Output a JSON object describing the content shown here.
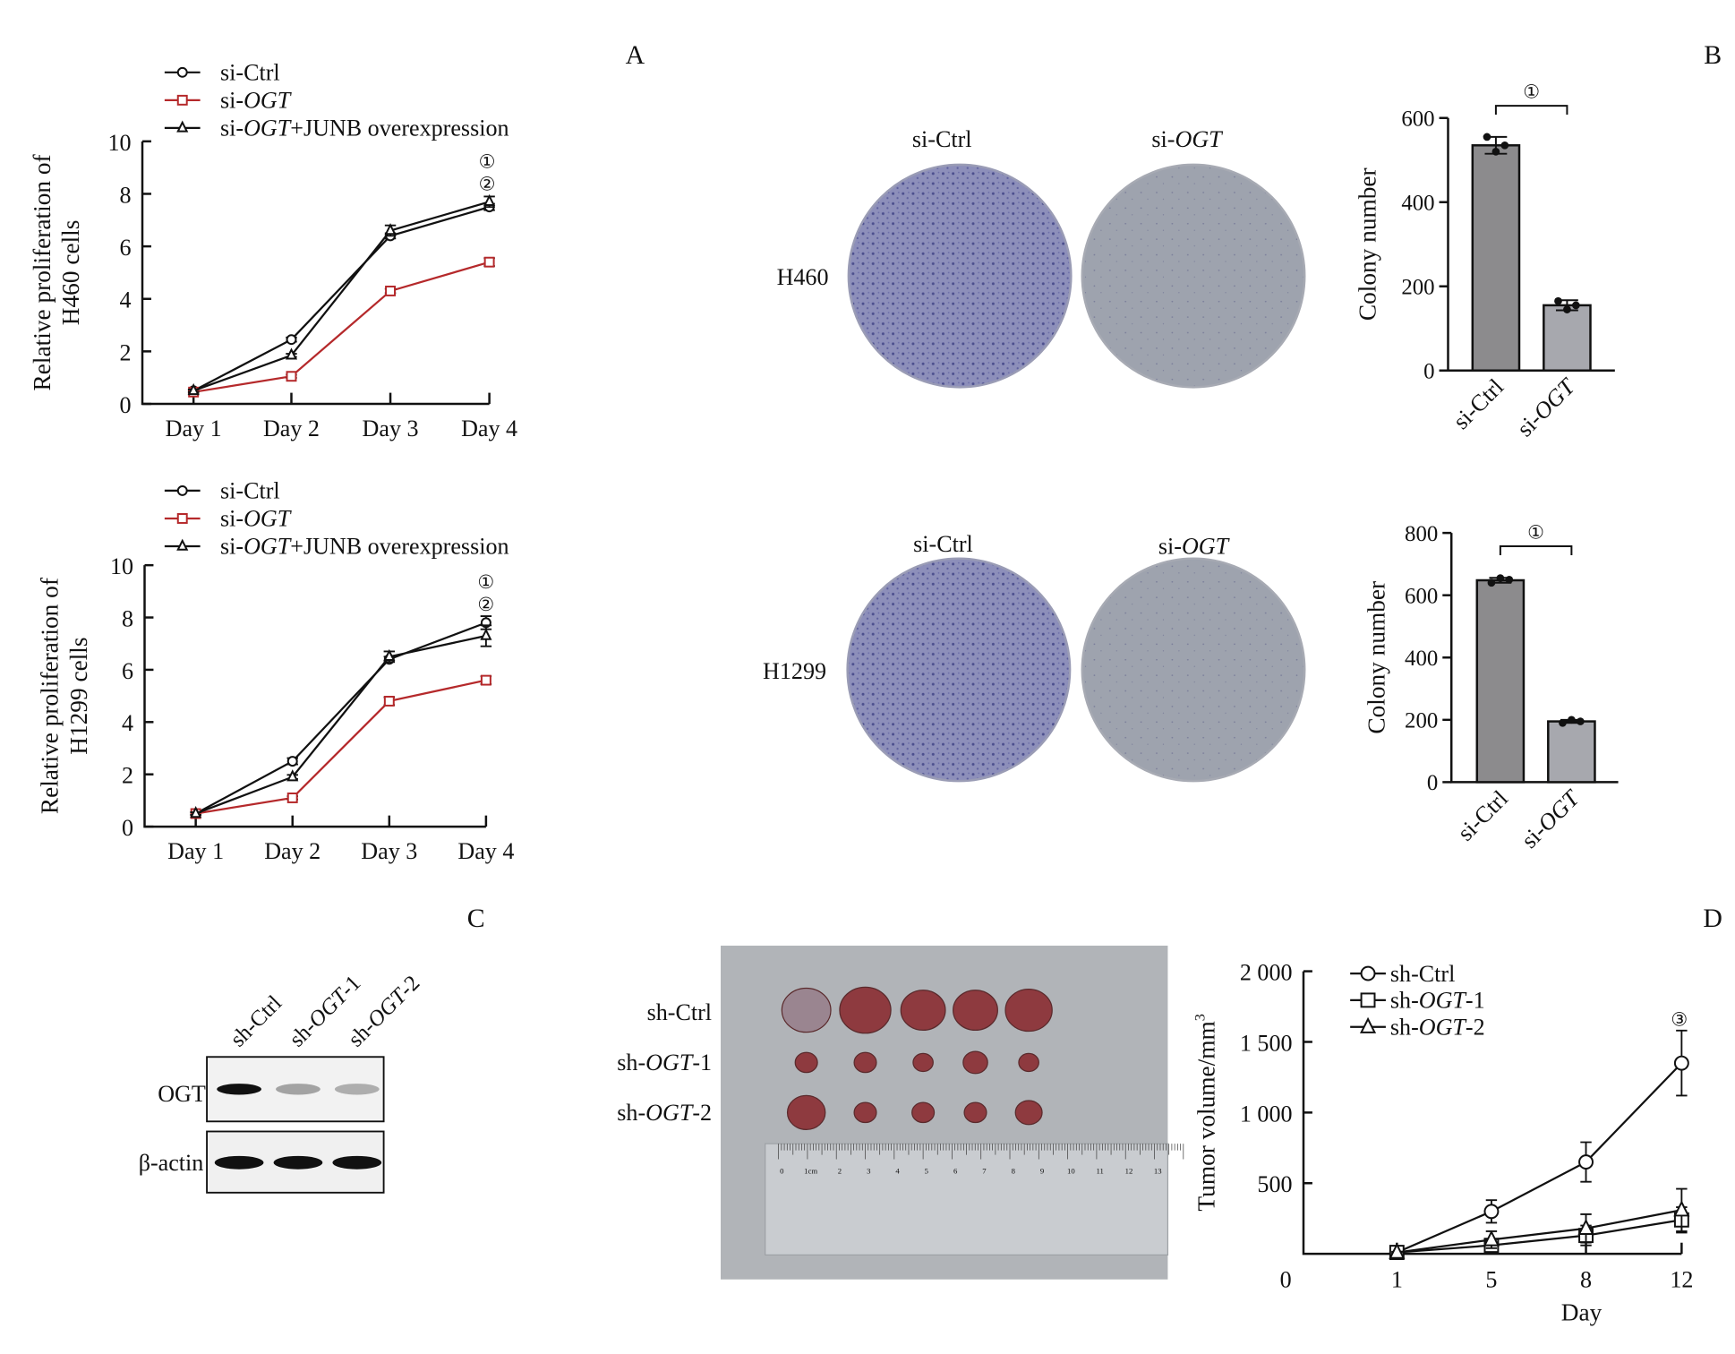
{
  "panels": {
    "a": "A",
    "b": "B",
    "c": "C",
    "d": "D"
  },
  "colors": {
    "black": "#111111",
    "red": "#b5292b",
    "bar_ctrl": "#8c8b8d",
    "bar_ogt": "#a7a8ae",
    "plate_ctrl": "#8d8fba",
    "plate_ogt": "#9ea3ae",
    "photo_bg": "#b1b4b8"
  },
  "chart_data": [
    {
      "id": "a1",
      "type": "line",
      "ylabel_line1": "Relative proliferation of",
      "ylabel_line2": "H460 cells",
      "categories": [
        "Day 1",
        "Day 2",
        "Day 3",
        "Day 4"
      ],
      "ylim": [
        0,
        10
      ],
      "yticks": [
        "0",
        "2",
        "4",
        "6",
        "8",
        "10"
      ],
      "series": [
        {
          "name_pre": "si-",
          "name_it": "",
          "name_post": "Ctrl",
          "marker": "circle",
          "color": "#111111",
          "values": [
            0.5,
            2.45,
            6.4,
            7.5
          ],
          "err": [
            0.05,
            0.08,
            0.1,
            0.12
          ]
        },
        {
          "name_pre": "si-",
          "name_it": "OGT",
          "name_post": "",
          "marker": "square",
          "color": "#b5292b",
          "values": [
            0.45,
            1.05,
            4.3,
            5.4
          ],
          "err": [
            0.05,
            0.06,
            0.08,
            0.15
          ]
        },
        {
          "name_pre": "si-",
          "name_it": "OGT",
          "name_post": "+JUNB overexpression",
          "marker": "triangle",
          "color": "#111111",
          "values": [
            0.5,
            1.85,
            6.6,
            7.7
          ],
          "err": [
            0.05,
            0.06,
            0.2,
            0.2
          ]
        }
      ],
      "annotations": [
        "①",
        "②"
      ]
    },
    {
      "id": "a2",
      "type": "line",
      "ylabel_line1": "Relative proliferation of",
      "ylabel_line2": "H1299 cells",
      "categories": [
        "Day 1",
        "Day 2",
        "Day 3",
        "Day 4"
      ],
      "ylim": [
        0,
        10
      ],
      "yticks": [
        "0",
        "2",
        "4",
        "6",
        "8",
        "10"
      ],
      "series": [
        {
          "name_pre": "si-",
          "name_it": "",
          "name_post": "Ctrl",
          "marker": "circle",
          "color": "#111111",
          "values": [
            0.5,
            2.5,
            6.4,
            7.8
          ],
          "err": [
            0.05,
            0.12,
            0.1,
            0.25
          ]
        },
        {
          "name_pre": "si-",
          "name_it": "OGT",
          "name_post": "",
          "marker": "square",
          "color": "#b5292b",
          "values": [
            0.5,
            1.1,
            4.8,
            5.6
          ],
          "err": [
            0.05,
            0.06,
            0.15,
            0.15
          ]
        },
        {
          "name_pre": "si-",
          "name_it": "OGT",
          "name_post": "+JUNB overexpression",
          "marker": "triangle",
          "color": "#111111",
          "values": [
            0.5,
            1.9,
            6.5,
            7.3
          ],
          "err": [
            0.05,
            0.08,
            0.2,
            0.4
          ]
        }
      ],
      "annotations": [
        "①",
        "②"
      ]
    },
    {
      "id": "b1",
      "type": "bar",
      "ylabel": "Colony number",
      "categories": [
        "si-Ctrl",
        "si-OGT"
      ],
      "values": [
        535,
        155
      ],
      "points": [
        [
          555,
          520,
          535
        ],
        [
          165,
          145,
          155
        ]
      ],
      "err": [
        20,
        12
      ],
      "ylim": [
        0,
        600
      ],
      "yticks": [
        "0",
        "200",
        "400",
        "600"
      ],
      "annotation": "①"
    },
    {
      "id": "b2",
      "type": "bar",
      "ylabel": "Colony number",
      "categories": [
        "si-Ctrl",
        "si-OGT"
      ],
      "values": [
        648,
        195
      ],
      "points": [
        [
          640,
          655,
          650
        ],
        [
          190,
          200,
          195
        ]
      ],
      "err": [
        8,
        5
      ],
      "ylim": [
        0,
        800
      ],
      "yticks": [
        "0",
        "200",
        "400",
        "600",
        "800"
      ],
      "annotation": "①"
    },
    {
      "id": "d",
      "type": "line",
      "ylabel": "Tumor volume/mm",
      "ylabel_sup": "3",
      "xlabel": "Day",
      "categories": [
        "1",
        "5",
        "8",
        "12"
      ],
      "ylim": [
        0,
        2000
      ],
      "yticks": [
        "0",
        "500",
        "1 000",
        "1 500",
        "2 000"
      ],
      "series": [
        {
          "name_pre": "sh-",
          "name_it": "",
          "name_post": "Ctrl",
          "marker": "circle",
          "color": "#111111",
          "values": [
            10,
            300,
            650,
            1350
          ],
          "err": [
            5,
            80,
            140,
            230
          ]
        },
        {
          "name_pre": "sh-",
          "name_it": "OGT",
          "name_post": "-1",
          "marker": "square",
          "color": "#111111",
          "values": [
            10,
            60,
            130,
            240
          ],
          "err": [
            5,
            40,
            70,
            90
          ]
        },
        {
          "name_pre": "sh-",
          "name_it": "OGT",
          "name_post": "-2",
          "marker": "triangle",
          "color": "#111111",
          "values": [
            10,
            100,
            180,
            310
          ],
          "err": [
            5,
            60,
            100,
            150
          ]
        }
      ],
      "annotations": [
        "③"
      ]
    }
  ],
  "colony": {
    "col_ctrl": "si-Ctrl",
    "col_ogt_pre": "si-",
    "col_ogt_it": "OGT",
    "row1": "H460",
    "row2": "H1299"
  },
  "western": {
    "lanes": [
      {
        "pre": "sh-Ctrl",
        "it": "",
        "post": ""
      },
      {
        "pre": "sh-",
        "it": "OGT",
        "post": "-1"
      },
      {
        "pre": "sh-",
        "it": "OGT",
        "post": "-2"
      }
    ],
    "rows": [
      "OGT",
      "β-actin"
    ],
    "ogt_intensity": [
      1.0,
      0.35,
      0.3
    ],
    "actin_intensity": [
      1.0,
      1.0,
      1.0
    ]
  },
  "tumor_photo": {
    "rows": [
      {
        "pre": "sh-Ctrl",
        "it": "",
        "post": ""
      },
      {
        "pre": "sh-",
        "it": "OGT",
        "post": "-1"
      },
      {
        "pre": "sh-",
        "it": "OGT",
        "post": "-2"
      }
    ],
    "ruler_labels": [
      "0",
      "1cm",
      "2",
      "3",
      "4",
      "5",
      "6",
      "7",
      "8",
      "9",
      "10",
      "11",
      "12",
      "13"
    ]
  }
}
